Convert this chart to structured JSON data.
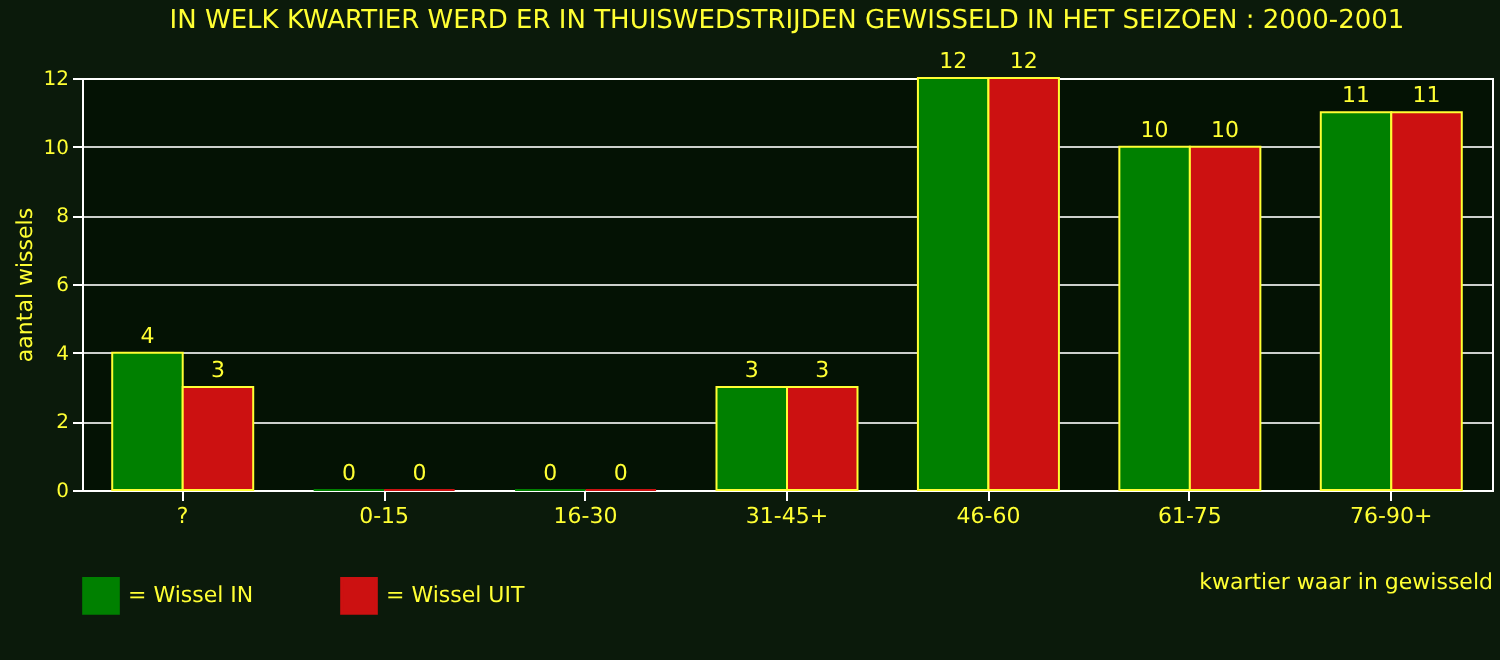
{
  "chart_data": {
    "type": "bar",
    "title": "IN WELK KWARTIER WERD ER IN THUISWEDSTRIJDEN GEWISSELD IN HET SEIZOEN : 2000-2001",
    "xlabel": "kwartier waar in gewisseld",
    "ylabel": "aantal wissels",
    "categories": [
      "?",
      "0-15",
      "16-30",
      "31-45+",
      "46-60",
      "61-75",
      "76-90+"
    ],
    "series": [
      {
        "name": "= Wissel IN",
        "color": "#008000",
        "values": [
          4,
          0,
          0,
          3,
          12,
          10,
          11
        ]
      },
      {
        "name": "= Wissel UIT",
        "color": "#cc1111",
        "values": [
          3,
          0,
          0,
          3,
          12,
          10,
          11
        ]
      }
    ],
    "ylim": [
      0,
      12
    ],
    "yticks": [
      0,
      2,
      4,
      6,
      8,
      10,
      12
    ],
    "grid": "y",
    "legend": "bottom",
    "data_labels": true
  }
}
